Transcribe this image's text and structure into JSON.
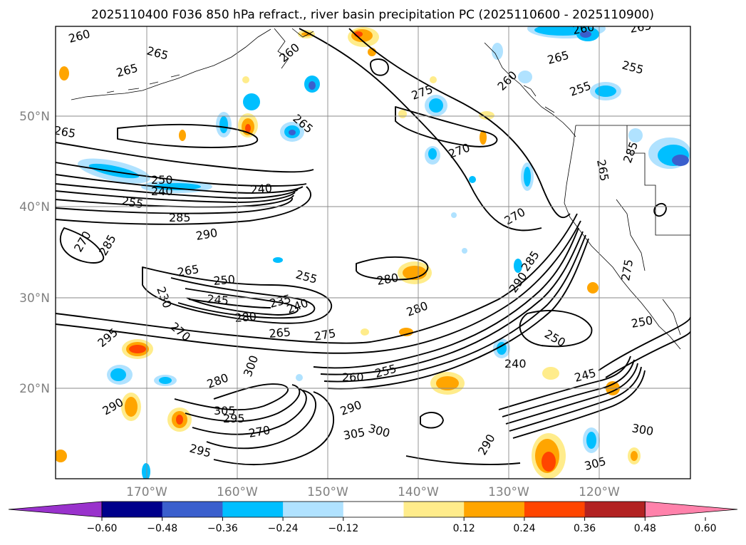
{
  "title": "2025110400 F036 850 hPa refract., river basin precipitation PC (2025110600 - 2025110900)",
  "map": {
    "lat_labels": [
      "50°N",
      "40°N",
      "30°N",
      "20°N"
    ],
    "lon_labels": [
      "170°W",
      "160°W",
      "150°W",
      "140°W",
      "130°W",
      "120°W"
    ],
    "contour_labels": [
      "260",
      "265",
      "265",
      "265",
      "260",
      "265",
      "265",
      "255",
      "255",
      "275",
      "260",
      "265",
      "270",
      "260",
      "265",
      "270",
      "285",
      "240",
      "250",
      "240",
      "255",
      "285",
      "290",
      "270",
      "285",
      "280",
      "255",
      "265",
      "250",
      "245",
      "235",
      "240",
      "280",
      "280",
      "265",
      "275",
      "290",
      "295",
      "270",
      "230",
      "240",
      "250",
      "285",
      "245",
      "250",
      "275",
      "280",
      "260",
      "255",
      "290",
      "300",
      "305",
      "290",
      "295",
      "270",
      "300",
      "305",
      "295",
      "290",
      "305",
      "300"
    ]
  },
  "colorbar": {
    "ticks": [
      "−0.60",
      "−0.48",
      "−0.36",
      "−0.24",
      "−0.12",
      "0.12",
      "0.24",
      "0.36",
      "0.48",
      "0.60"
    ],
    "colors": [
      "#9932cc",
      "#00008b",
      "#3a5fcd",
      "#00bfff",
      "#b0e2ff",
      "#ffffff",
      "#ffec8b",
      "#ffa500",
      "#ff4500",
      "#b22222",
      "#ff82ab"
    ]
  }
}
